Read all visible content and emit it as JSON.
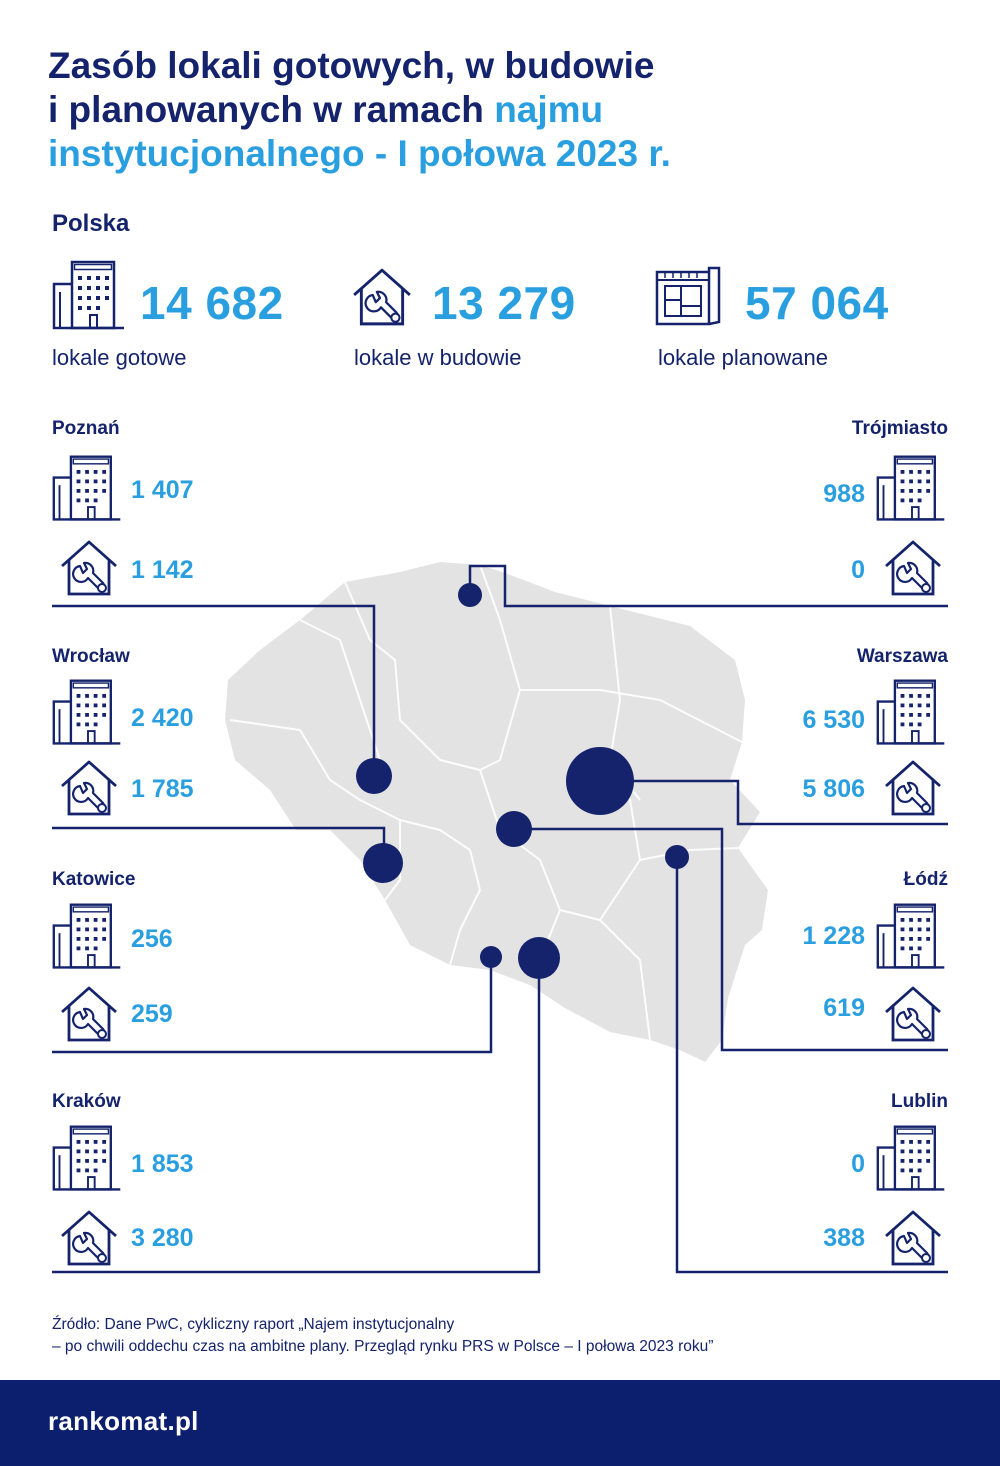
{
  "title": {
    "line1": "Zasób lokali gotowych, w budowie",
    "line2_part1": "i planowanych w ramach ",
    "line2_part2": "najmu",
    "line3": "instytucjonalnego - I połowa 2023 r."
  },
  "country": {
    "name": "Polska",
    "ready": {
      "value": "14 682",
      "label": "lokale gotowe",
      "icon": "apartment-building-icon"
    },
    "construction": {
      "value": "13 279",
      "label": "lokale w budowie",
      "icon": "house-wrench-icon"
    },
    "planned": {
      "value": "57 064",
      "label": "lokale planowane",
      "icon": "blueprint-icon"
    }
  },
  "cities": {
    "poznan": {
      "name": "Poznań",
      "ready": "1 407",
      "construction": "1 142"
    },
    "wroclaw": {
      "name": "Wrocław",
      "ready": "2 420",
      "construction": "1 785"
    },
    "katowice": {
      "name": "Katowice",
      "ready": "256",
      "construction": "259"
    },
    "krakow": {
      "name": "Kraków",
      "ready": "1 853",
      "construction": "3 280"
    },
    "trojmiasto": {
      "name": "Trójmiasto",
      "ready": "988",
      "construction": "0"
    },
    "warszawa": {
      "name": "Warszawa",
      "ready": "6 530",
      "construction": "5 806"
    },
    "lodz": {
      "name": "Łódź",
      "ready": "1 228",
      "construction": "619"
    },
    "lublin": {
      "name": "Lublin",
      "ready": "0",
      "construction": "388"
    }
  },
  "source": {
    "line1": "Źródło: Dane PwC, cykliczny raport „Najem instytucjonalny",
    "line2": "– po chwili oddechu czas na ambitne plany. Przegląd rynku PRS w Polsce – I połowa 2023 roku”"
  },
  "footer": {
    "logo": "rankomat.pl"
  },
  "colors": {
    "navy": "#14236b",
    "accent": "#2a9fe0",
    "map": "#e3e3e3",
    "footer": "#0c1e6e"
  }
}
